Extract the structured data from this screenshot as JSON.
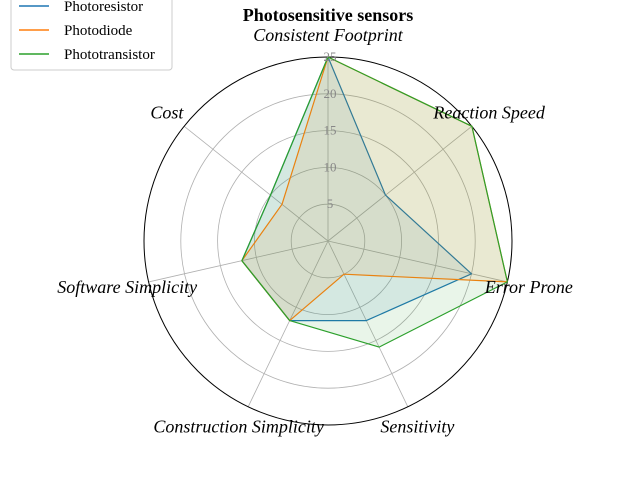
{
  "chart_data": {
    "type": "radar",
    "title": "Photosensitive sensors",
    "axes": [
      "Consistent Footprint",
      "Reaction Speed",
      "Error Prone",
      "Sensitivity",
      "Construction Simplicity",
      "Software Simplicity",
      "Cost"
    ],
    "ticks": [
      5,
      10,
      15,
      20,
      25
    ],
    "rlim": [
      0,
      25
    ],
    "grid": true,
    "legend_position": "top-left",
    "series": [
      {
        "name": "Photoresistor",
        "values": [
          25,
          10,
          20,
          12,
          12,
          12,
          10
        ],
        "color": "#1f77b4"
      },
      {
        "name": "Photodiode",
        "values": [
          25,
          25,
          25,
          5,
          12,
          12,
          8
        ],
        "color": "#ff7f0e"
      },
      {
        "name": "Phototransistor",
        "values": [
          25,
          25,
          25,
          16,
          12,
          12,
          10
        ],
        "color": "#2ca02c"
      }
    ]
  }
}
